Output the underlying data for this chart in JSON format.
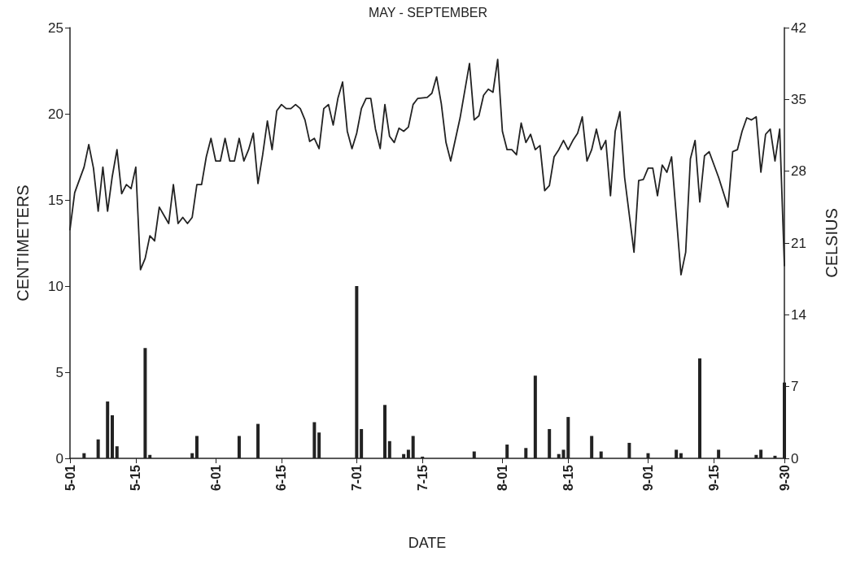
{
  "chart_data": {
    "type": "line",
    "title": "MAY - SEPTEMBER",
    "xlabel": "DATE",
    "ylabel": "CENTIMETERS",
    "y2label": "CELSIUS",
    "xlim": [
      "--05-01",
      "--09-30"
    ],
    "xticks": [
      {
        "value": "--05-01",
        "label": "5-01"
      },
      {
        "value": "--05-15",
        "label": "5-15"
      },
      {
        "value": "--06-01",
        "label": "6-01"
      },
      {
        "value": "--06-15",
        "label": "6-15"
      },
      {
        "value": "--07-01",
        "label": "7-01"
      },
      {
        "value": "--07-15",
        "label": "7-15"
      },
      {
        "value": "--08-01",
        "label": "8-01"
      },
      {
        "value": "--08-15",
        "label": "8-15"
      },
      {
        "value": "--09-01",
        "label": "9-01"
      },
      {
        "value": "--09-15",
        "label": "9-15"
      },
      {
        "value": "--09-30",
        "label": "9-30"
      }
    ],
    "ylim": [
      0,
      25
    ],
    "yticks": [
      0,
      5,
      10,
      15,
      20,
      25
    ],
    "y2lim": [
      0,
      42
    ],
    "y2ticks": [
      0,
      7,
      14,
      21,
      28,
      35,
      42
    ],
    "grid": false,
    "marker": "none",
    "line_style": "solid",
    "series": [
      {
        "axis": "y2",
        "color": "#222222",
        "x": [
          "--05-01",
          "--05-02",
          "--05-04",
          "--05-05",
          "--05-06",
          "--05-07",
          "--05-08",
          "--05-09",
          "--05-10",
          "--05-11",
          "--05-12",
          "--05-13",
          "--05-14",
          "--05-15",
          "--05-16",
          "--05-17",
          "--05-18",
          "--05-19",
          "--05-20",
          "--05-21",
          "--05-22",
          "--05-23",
          "--05-24",
          "--05-25",
          "--05-26",
          "--05-27",
          "--05-28",
          "--05-29",
          "--05-30",
          "--05-31",
          "--06-01",
          "--06-02",
          "--06-03",
          "--06-04",
          "--06-05",
          "--06-06",
          "--06-07",
          "--06-08",
          "--06-09",
          "--06-10",
          "--06-11",
          "--06-12",
          "--06-13",
          "--06-14",
          "--06-15",
          "--06-16",
          "--06-17",
          "--06-18",
          "--06-19",
          "--06-20",
          "--06-21",
          "--06-22",
          "--06-23",
          "--06-24",
          "--06-25",
          "--06-26",
          "--06-27",
          "--06-28",
          "--06-29",
          "--06-30",
          "--07-01",
          "--07-02",
          "--07-03",
          "--07-04",
          "--07-05",
          "--07-06",
          "--07-07",
          "--07-08",
          "--07-09",
          "--07-10",
          "--07-11",
          "--07-12",
          "--07-13",
          "--07-14",
          "--07-16",
          "--07-17",
          "--07-18",
          "--07-19",
          "--07-20",
          "--07-21",
          "--07-23",
          "--07-25",
          "--07-26",
          "--07-27",
          "--07-28",
          "--07-29",
          "--07-30",
          "--07-31",
          "--08-01",
          "--08-02",
          "--08-03",
          "--08-04",
          "--08-05",
          "--08-06",
          "--08-07",
          "--08-08",
          "--08-09",
          "--08-10",
          "--08-11",
          "--08-12",
          "--08-13",
          "--08-14",
          "--08-15",
          "--08-16",
          "--08-17",
          "--08-18",
          "--08-19",
          "--08-20",
          "--08-21",
          "--08-22",
          "--08-23",
          "--08-24",
          "--08-25",
          "--08-26",
          "--08-27",
          "--08-29",
          "--08-30",
          "--08-31",
          "--09-01",
          "--09-02",
          "--09-03",
          "--09-04",
          "--09-05",
          "--09-06",
          "--09-08",
          "--09-09",
          "--09-10",
          "--09-11",
          "--09-12",
          "--09-13",
          "--09-14",
          "--09-16",
          "--09-18",
          "--09-19",
          "--09-20",
          "--09-21",
          "--09-22",
          "--09-23",
          "--09-24",
          "--09-25",
          "--09-26",
          "--09-27",
          "--09-28",
          "--09-29",
          "--09-30"
        ],
        "values": [
          22.3,
          25.9,
          28.4,
          30.6,
          28.3,
          24.1,
          28.4,
          24.1,
          27.5,
          30.1,
          25.8,
          26.7,
          26.3,
          28.4,
          18.4,
          19.5,
          21.7,
          21.2,
          24.5,
          23.7,
          22.9,
          26.7,
          22.9,
          23.5,
          22.9,
          23.5,
          26.7,
          26.7,
          29.4,
          31.2,
          29.0,
          29.0,
          31.2,
          29.0,
          29.0,
          31.2,
          29.0,
          30.1,
          31.7,
          26.8,
          29.6,
          32.9,
          30.1,
          33.9,
          34.5,
          34.1,
          34.1,
          34.5,
          34.1,
          33.0,
          30.9,
          31.2,
          30.2,
          34.1,
          34.5,
          32.5,
          35.1,
          36.7,
          31.9,
          30.2,
          31.7,
          34.1,
          35.1,
          35.1,
          32.1,
          30.2,
          34.5,
          31.4,
          30.8,
          32.2,
          31.9,
          32.3,
          34.5,
          35.1,
          35.2,
          35.6,
          37.2,
          34.6,
          30.8,
          29.0,
          33.2,
          38.5,
          33.0,
          33.4,
          35.4,
          36.0,
          35.7,
          38.9,
          31.9,
          30.1,
          30.1,
          29.6,
          32.7,
          30.8,
          31.6,
          30.1,
          30.5,
          26.1,
          26.6,
          29.4,
          30.1,
          31.0,
          30.1,
          31.0,
          31.7,
          33.3,
          29.0,
          30.1,
          32.1,
          30.1,
          31.0,
          25.6,
          31.9,
          33.8,
          27.4,
          20.1,
          27.1,
          27.2,
          28.3,
          28.3,
          25.6,
          28.6,
          27.9,
          29.4,
          17.9,
          20.1,
          29.2,
          31.0,
          25.0,
          29.5,
          29.9,
          27.4,
          24.5,
          29.9,
          30.1,
          31.9,
          33.2,
          33.0,
          33.3,
          27.9,
          31.6,
          32.1,
          29.0,
          32.1,
          18.8
        ]
      },
      {
        "type": "bar",
        "axis": "y",
        "color": "#222222",
        "x": [
          "--05-04",
          "--05-07",
          "--05-09",
          "--05-10",
          "--05-11",
          "--05-17",
          "--05-18",
          "--05-27",
          "--05-28",
          "--06-06",
          "--06-10",
          "--06-22",
          "--06-23",
          "--07-01",
          "--07-02",
          "--07-07",
          "--07-08",
          "--07-11",
          "--07-12",
          "--07-13",
          "--07-15",
          "--07-26",
          "--08-02",
          "--08-06",
          "--08-08",
          "--08-11",
          "--08-13",
          "--08-14",
          "--08-15",
          "--08-20",
          "--08-22",
          "--08-28",
          "--09-01",
          "--09-07",
          "--09-08",
          "--09-12",
          "--09-16",
          "--09-24",
          "--09-25",
          "--09-28",
          "--09-30"
        ],
        "values": [
          0.3,
          1.1,
          3.3,
          2.5,
          0.7,
          6.4,
          0.2,
          0.3,
          1.3,
          1.3,
          2.0,
          2.1,
          1.5,
          10.0,
          1.7,
          3.1,
          1.0,
          0.25,
          0.5,
          1.3,
          0.1,
          0.4,
          0.8,
          0.6,
          4.8,
          1.7,
          0.25,
          0.5,
          2.4,
          1.3,
          0.4,
          0.9,
          0.3,
          0.5,
          0.3,
          5.8,
          0.5,
          0.2,
          0.5,
          0.15,
          4.4
        ]
      }
    ]
  }
}
